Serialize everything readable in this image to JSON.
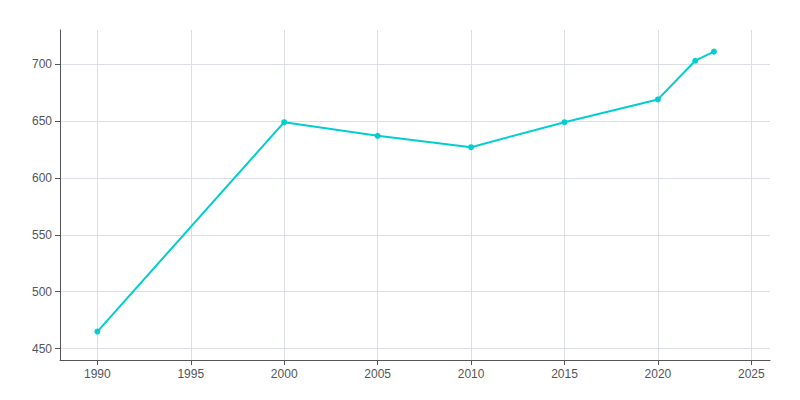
{
  "chart_data": {
    "type": "line",
    "x": [
      1990,
      2000,
      2005,
      2010,
      2015,
      2020,
      2022,
      2023
    ],
    "values": [
      465,
      649,
      637,
      627,
      649,
      669,
      703,
      711
    ],
    "color": "#00CED1",
    "marker": "circle",
    "xlim": [
      1988,
      2026
    ],
    "xticks": [
      1990,
      1995,
      2000,
      2005,
      2010,
      2015,
      2020,
      2025
    ],
    "ylim": [
      440,
      730
    ],
    "yticks": [
      450,
      500,
      550,
      600,
      650,
      700
    ],
    "grid": true
  }
}
